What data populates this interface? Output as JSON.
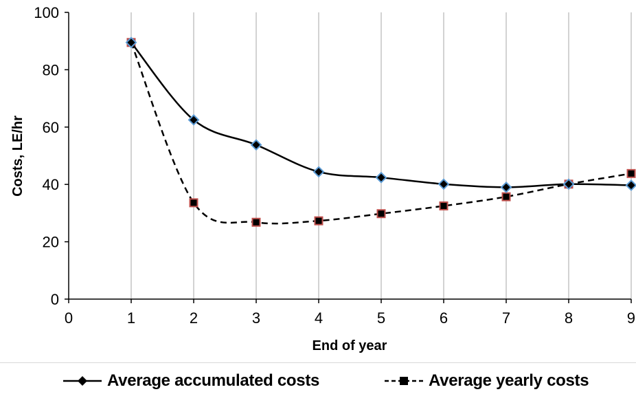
{
  "chart_data": {
    "type": "line",
    "xlabel": "End of year",
    "ylabel": "Costs, LE/hr",
    "xlim": [
      0,
      9
    ],
    "ylim": [
      0,
      100
    ],
    "xticks": [
      0,
      1,
      2,
      3,
      4,
      5,
      6,
      7,
      8,
      9
    ],
    "yticks": [
      0,
      20,
      40,
      60,
      80,
      100
    ],
    "grid": "vertical",
    "legend_position": "bottom",
    "series": [
      {
        "name": "Average accumulated costs",
        "style": "solid",
        "marker": "diamond",
        "marker_fill": "#000000",
        "marker_edge": "#5b9bd5",
        "x": [
          1,
          2,
          3,
          4,
          5,
          6,
          7,
          8,
          9
        ],
        "y": [
          89.5,
          62.5,
          53.8,
          44.4,
          42.4,
          40.1,
          39.0,
          40.1,
          39.7
        ]
      },
      {
        "name": "Average yearly costs",
        "style": "dashed",
        "marker": "square",
        "marker_fill": "#000000",
        "marker_edge": "#c0504d",
        "x": [
          1,
          2,
          3,
          4,
          5,
          6,
          7,
          8,
          9
        ],
        "y": [
          89.5,
          33.6,
          26.8,
          27.3,
          29.8,
          32.5,
          35.7,
          40.1,
          43.8
        ]
      }
    ]
  }
}
